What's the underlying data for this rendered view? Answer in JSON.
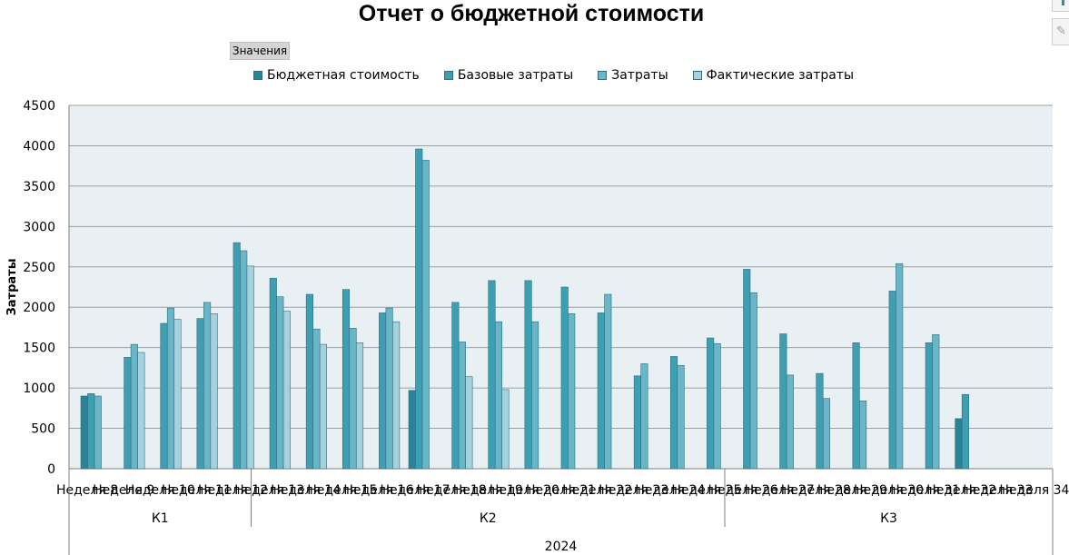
{
  "chart_data": {
    "type": "bar",
    "title": "Отчет о бюджетной стоимости",
    "field_button": "Значения",
    "ylabel": "Затраты",
    "ylim": [
      0,
      4500
    ],
    "yticks": [
      0,
      500,
      1000,
      1500,
      2000,
      2500,
      3000,
      3500,
      4000,
      4500
    ],
    "grid": true,
    "legend_position": "top",
    "colors": [
      "#2a8497",
      "#3f9fb2",
      "#69b6c9",
      "#a6d2de"
    ],
    "plot_background": "#e9f0f3",
    "categories": [
      "Неделя 8",
      "Неделя 9",
      "Неделя 10",
      "Неделя 11",
      "Неделя 12",
      "Неделя 13",
      "Неделя 14",
      "Неделя 15",
      "Неделя 16",
      "Неделя 17",
      "Неделя 18",
      "Неделя 19",
      "Неделя 20",
      "Неделя 21",
      "Неделя 22",
      "Неделя 23",
      "Неделя 24",
      "Неделя 25",
      "Неделя 26",
      "Неделя 27",
      "Неделя 28",
      "Неделя 29",
      "Неделя 30",
      "Неделя 31",
      "Неделя 32",
      "Неделя 33",
      "Неделя 34"
    ],
    "quarters": [
      {
        "label": "К1",
        "span": 5
      },
      {
        "label": "К2",
        "span": 13
      },
      {
        "label": "К3",
        "span": 9
      }
    ],
    "year": "2024",
    "series": [
      {
        "name": "Бюджетная стоимость",
        "values": [
          900,
          0,
          0,
          0,
          0,
          0,
          0,
          0,
          0,
          970,
          0,
          0,
          0,
          0,
          0,
          0,
          0,
          0,
          0,
          0,
          0,
          0,
          0,
          0,
          620,
          0,
          0
        ]
      },
      {
        "name": "Базовые затраты",
        "values": [
          930,
          1380,
          1800,
          1860,
          2800,
          2360,
          2160,
          2220,
          1930,
          3960,
          2060,
          2330,
          2330,
          2250,
          1930,
          1150,
          1390,
          1620,
          2470,
          1670,
          1180,
          1560,
          2200,
          1560,
          920,
          0,
          0
        ]
      },
      {
        "name": "Затраты",
        "values": [
          900,
          1540,
          1990,
          2060,
          2700,
          2130,
          1730,
          1740,
          1990,
          3820,
          1570,
          1820,
          1820,
          1920,
          2160,
          1300,
          1280,
          1550,
          2180,
          1160,
          870,
          840,
          2540,
          1660,
          0,
          0,
          0
        ]
      },
      {
        "name": "Фактические затраты",
        "values": [
          0,
          1440,
          1850,
          1920,
          2510,
          1950,
          1540,
          1560,
          1820,
          0,
          1140,
          980,
          0,
          0,
          0,
          0,
          0,
          0,
          0,
          0,
          0,
          0,
          0,
          0,
          0,
          0,
          0
        ]
      }
    ]
  }
}
